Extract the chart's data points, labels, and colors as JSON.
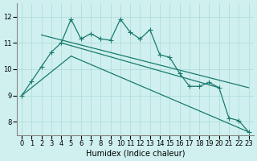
{
  "bg_color": "#cff0ee",
  "grid_color": "#aadad6",
  "line_color": "#1a7a6e",
  "xlabel": "Humidex (Indice chaleur)",
  "xlim": [
    -0.5,
    23.5
  ],
  "ylim": [
    7.5,
    12.5
  ],
  "xticks": [
    0,
    1,
    2,
    3,
    4,
    5,
    6,
    7,
    8,
    9,
    10,
    11,
    12,
    13,
    14,
    15,
    16,
    17,
    18,
    19,
    20,
    21,
    22,
    23
  ],
  "yticks": [
    8,
    9,
    10,
    11,
    12
  ],
  "line1_x": [
    0,
    1,
    2,
    3,
    4,
    5,
    6,
    7,
    8,
    9,
    10,
    11,
    12,
    13,
    14,
    15,
    16,
    17,
    18,
    19,
    20,
    21,
    22,
    23
  ],
  "line1_y": [
    9.0,
    9.55,
    10.1,
    10.65,
    11.0,
    11.9,
    11.15,
    11.35,
    11.15,
    11.1,
    11.9,
    11.4,
    11.15,
    11.5,
    10.55,
    10.45,
    9.85,
    9.35,
    9.35,
    9.5,
    9.3,
    8.15,
    8.05,
    7.62
  ],
  "line2_x": [
    2,
    23
  ],
  "line2_y": [
    11.3,
    9.3
  ],
  "line3_x": [
    0,
    5,
    23
  ],
  "line3_y": [
    9.0,
    10.5,
    7.62
  ],
  "line4_x": [
    4,
    20
  ],
  "line4_y": [
    11.0,
    9.3
  ]
}
